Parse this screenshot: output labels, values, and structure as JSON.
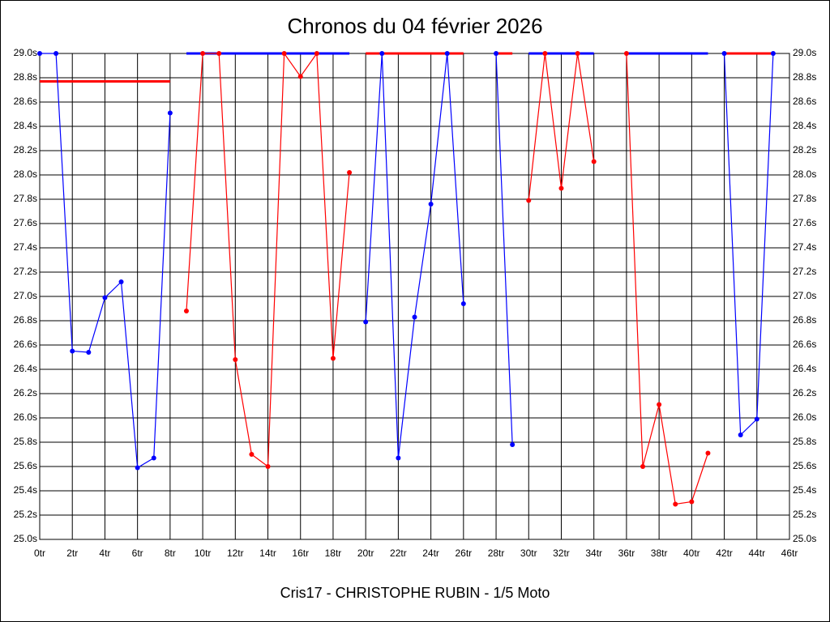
{
  "chart_data": {
    "type": "line",
    "title": "Chronos du 04 février 2026",
    "x_label": "Cris17 - CHRISTOPHE RUBIN - 1/5 Moto",
    "grid": true,
    "xlim": [
      0,
      46
    ],
    "ylim": [
      25.0,
      29.0
    ],
    "xticks": [
      {
        "value": 0,
        "label": "0tr"
      },
      {
        "value": 2,
        "label": "2tr"
      },
      {
        "value": 4,
        "label": "4tr"
      },
      {
        "value": 6,
        "label": "6tr"
      },
      {
        "value": 8,
        "label": "8tr"
      },
      {
        "value": 10,
        "label": "10tr"
      },
      {
        "value": 12,
        "label": "12tr"
      },
      {
        "value": 14,
        "label": "14tr"
      },
      {
        "value": 16,
        "label": "16tr"
      },
      {
        "value": 18,
        "label": "18tr"
      },
      {
        "value": 20,
        "label": "20tr"
      },
      {
        "value": 22,
        "label": "22tr"
      },
      {
        "value": 24,
        "label": "24tr"
      },
      {
        "value": 26,
        "label": "26tr"
      },
      {
        "value": 28,
        "label": "28tr"
      },
      {
        "value": 30,
        "label": "30tr"
      },
      {
        "value": 32,
        "label": "32tr"
      },
      {
        "value": 34,
        "label": "34tr"
      },
      {
        "value": 36,
        "label": "36tr"
      },
      {
        "value": 38,
        "label": "38tr"
      },
      {
        "value": 40,
        "label": "40tr"
      },
      {
        "value": 42,
        "label": "42tr"
      },
      {
        "value": 44,
        "label": "44tr"
      },
      {
        "value": 46,
        "label": "46tr"
      }
    ],
    "yticks": [
      {
        "value": 25.0,
        "label": "25.0s"
      },
      {
        "value": 25.2,
        "label": "25.2s"
      },
      {
        "value": 25.4,
        "label": "25.4s"
      },
      {
        "value": 25.6,
        "label": "25.6s"
      },
      {
        "value": 25.8,
        "label": "25.8s"
      },
      {
        "value": 26.0,
        "label": "26.0s"
      },
      {
        "value": 26.2,
        "label": "26.2s"
      },
      {
        "value": 26.4,
        "label": "26.4s"
      },
      {
        "value": 26.6,
        "label": "26.6s"
      },
      {
        "value": 26.8,
        "label": "26.8s"
      },
      {
        "value": 27.0,
        "label": "27.0s"
      },
      {
        "value": 27.2,
        "label": "27.2s"
      },
      {
        "value": 27.4,
        "label": "27.4s"
      },
      {
        "value": 27.6,
        "label": "27.6s"
      },
      {
        "value": 27.8,
        "label": "27.8s"
      },
      {
        "value": 28.0,
        "label": "28.0s"
      },
      {
        "value": 28.2,
        "label": "28.2s"
      },
      {
        "value": 28.4,
        "label": "28.4s"
      },
      {
        "value": 28.6,
        "label": "28.6s"
      },
      {
        "value": 28.8,
        "label": "28.8s"
      },
      {
        "value": 29.0,
        "label": "29.0s"
      }
    ],
    "series": [
      {
        "color": "#0000ff",
        "x": [
          0,
          1,
          2,
          3,
          4,
          5,
          6,
          7,
          8
        ],
        "values": [
          29.0,
          29.0,
          26.55,
          26.54,
          26.99,
          27.12,
          25.59,
          25.67,
          28.51
        ]
      },
      {
        "color": "#ff0000",
        "x": [
          9,
          10,
          11,
          12,
          13,
          14,
          15,
          16,
          17,
          18,
          19
        ],
        "values": [
          26.88,
          29.0,
          29.0,
          26.48,
          25.7,
          25.6,
          29.0,
          28.81,
          29.0,
          26.49,
          28.02
        ]
      },
      {
        "color": "#0000ff",
        "x": [
          20,
          21,
          22,
          23,
          24,
          25,
          26
        ],
        "values": [
          26.79,
          29.0,
          25.67,
          26.83,
          27.76,
          29.0,
          26.94
        ]
      },
      {
        "color": "#0000ff",
        "x": [
          28,
          29
        ],
        "values": [
          29.0,
          25.78
        ]
      },
      {
        "color": "#ff0000",
        "x": [
          30,
          31,
          32,
          33,
          34
        ],
        "values": [
          27.79,
          29.0,
          27.89,
          29.0,
          28.11
        ]
      },
      {
        "color": "#ff0000",
        "x": [
          36,
          37,
          38,
          39,
          40,
          41
        ],
        "values": [
          29.0,
          25.6,
          26.11,
          25.29,
          25.31,
          25.71
        ]
      },
      {
        "color": "#0000ff",
        "x": [
          42,
          43,
          44,
          45
        ],
        "values": [
          29.0,
          25.86,
          25.99,
          29.0
        ]
      }
    ],
    "averages": [
      {
        "color": "#ff0000",
        "x": [
          0,
          8
        ],
        "value": 28.77
      },
      {
        "color": "#0000ff",
        "x": [
          9,
          19
        ],
        "value": 29.0
      },
      {
        "color": "#ff0000",
        "x": [
          20,
          26
        ],
        "value": 29.0
      },
      {
        "color": "#ff0000",
        "x": [
          28,
          29
        ],
        "value": 29.0
      },
      {
        "color": "#0000ff",
        "x": [
          30,
          34
        ],
        "value": 29.0
      },
      {
        "color": "#0000ff",
        "x": [
          36,
          41
        ],
        "value": 29.0
      },
      {
        "color": "#ff0000",
        "x": [
          42,
          45
        ],
        "value": 29.0
      }
    ]
  }
}
